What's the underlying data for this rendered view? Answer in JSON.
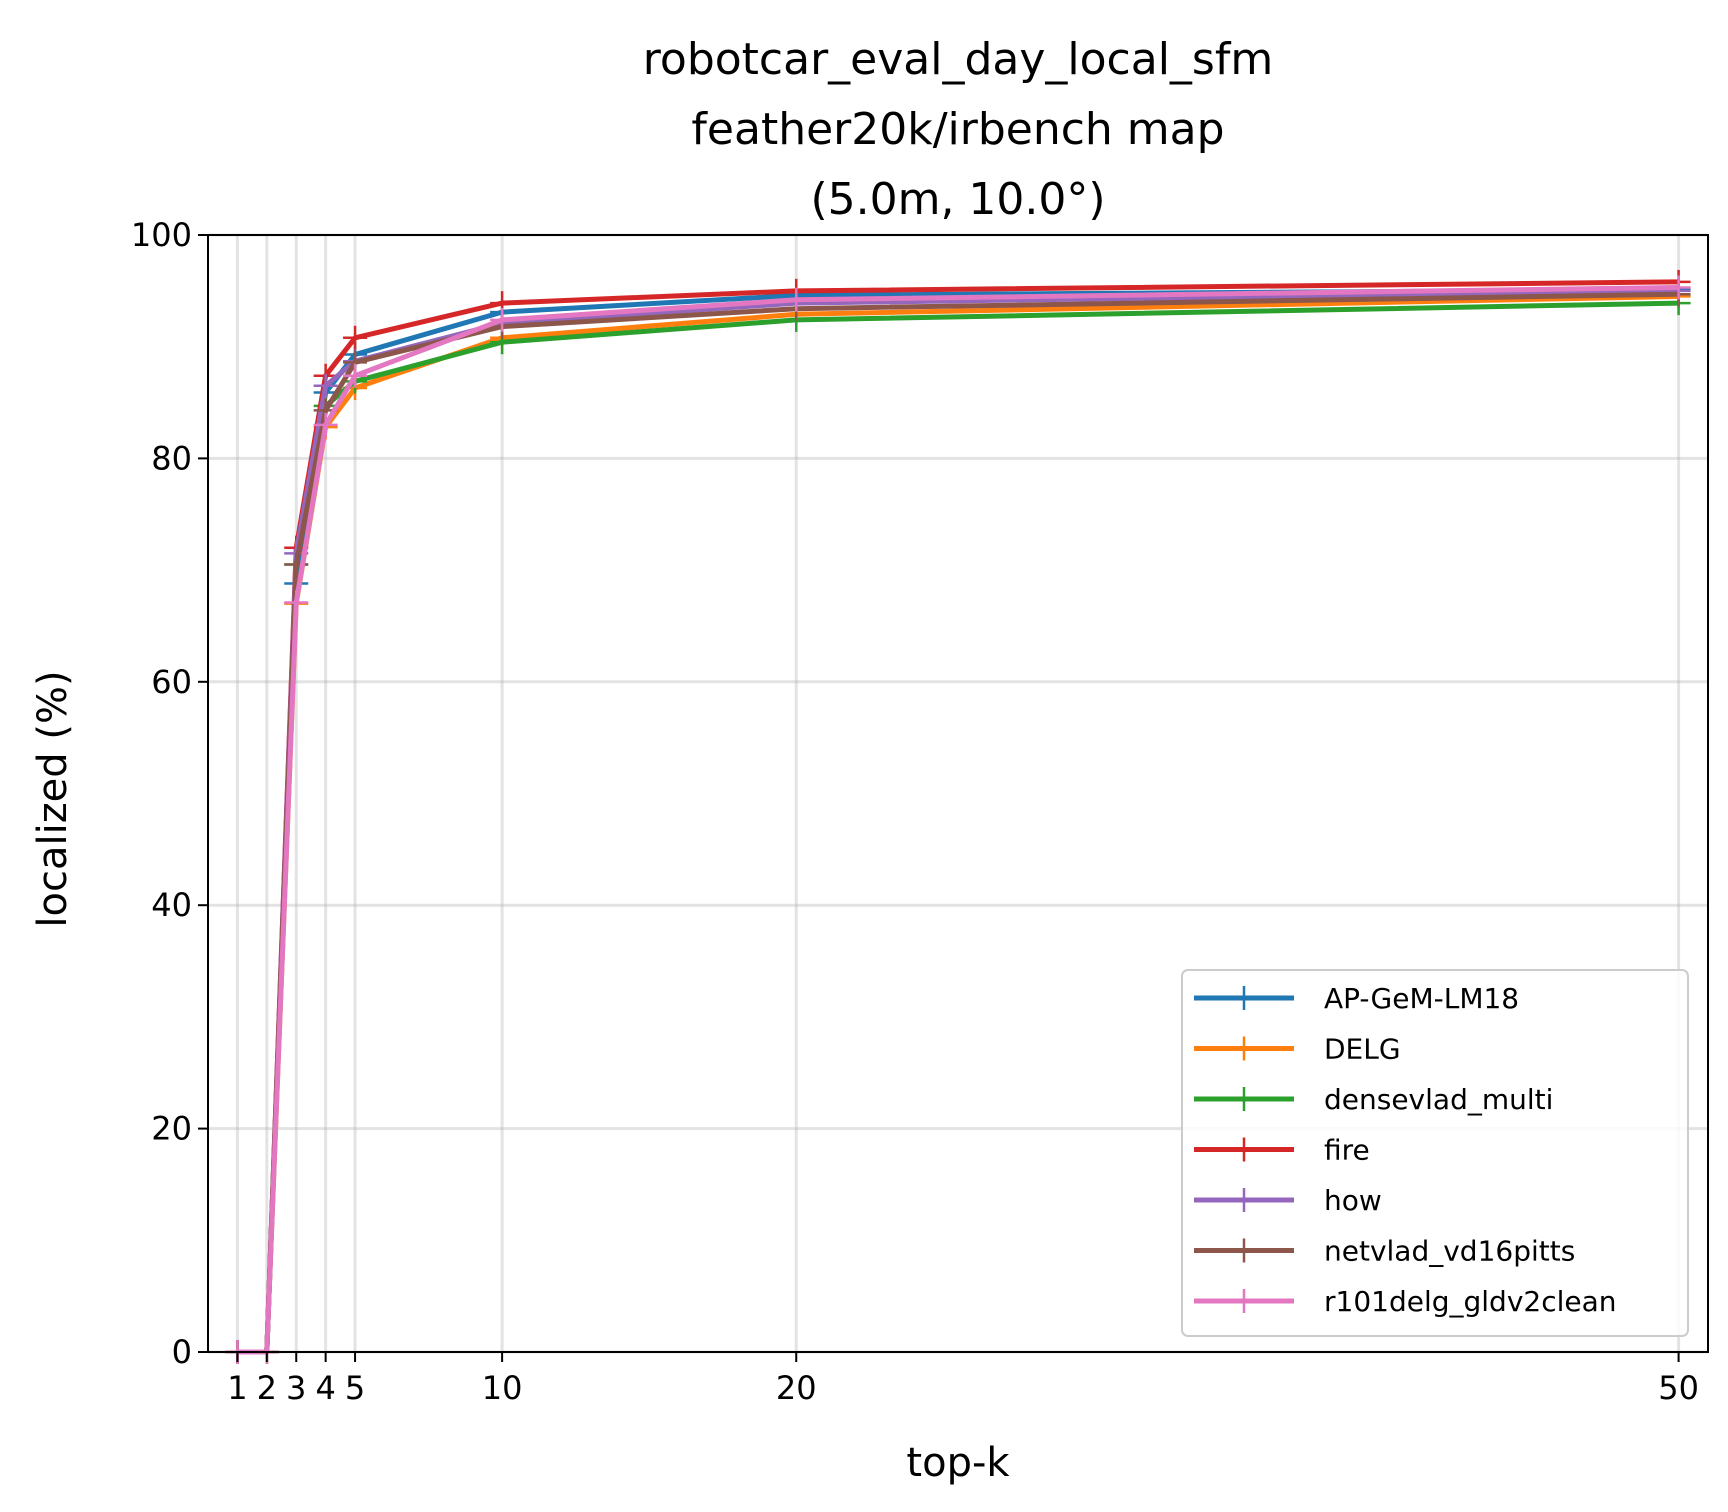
{
  "chart_data": {
    "type": "line",
    "title_lines": [
      "robotcar_eval_day_local_sfm",
      "feather20k/irbench map",
      "(5.0m, 10.0°)"
    ],
    "xlabel": "top-k",
    "ylabel": "localized (%)",
    "x": [
      1,
      2,
      3,
      4,
      5,
      10,
      20,
      50
    ],
    "x_tick_labels": [
      "1",
      "2",
      "3",
      "4",
      "5",
      "10",
      "20",
      "50"
    ],
    "y_ticks": [
      0,
      20,
      40,
      60,
      80,
      100
    ],
    "y_tick_labels": [
      "0",
      "20",
      "40",
      "60",
      "80",
      "100"
    ],
    "xlim": [
      0.0,
      51.0
    ],
    "ylim": [
      0,
      100
    ],
    "grid": true,
    "legend_position": "lower-right",
    "series": [
      {
        "name": "AP-GeM-LM18",
        "color": "#1f77b4",
        "values": [
          0,
          0,
          68.8,
          85.9,
          89.3,
          93.1,
          94.6,
          95.1
        ]
      },
      {
        "name": "DELG",
        "color": "#ff7f0e",
        "values": [
          0,
          0,
          67.0,
          82.8,
          86.3,
          90.8,
          92.9,
          94.5
        ]
      },
      {
        "name": "densevlad_multi",
        "color": "#2ca02c",
        "values": [
          0,
          0,
          70.5,
          84.7,
          86.9,
          90.4,
          92.4,
          93.9
        ]
      },
      {
        "name": "fire",
        "color": "#d62728",
        "values": [
          0,
          0,
          72.0,
          87.4,
          90.8,
          93.9,
          95.0,
          95.8
        ]
      },
      {
        "name": "how",
        "color": "#9467bd",
        "values": [
          0,
          0,
          71.5,
          86.5,
          88.7,
          92.1,
          93.9,
          95.0
        ]
      },
      {
        "name": "netvlad_vd16pitts",
        "color": "#8c564b",
        "values": [
          0,
          0,
          70.5,
          84.3,
          88.6,
          91.8,
          93.4,
          94.7
        ]
      },
      {
        "name": "r101delg_gldv2clean",
        "color": "#e377c2",
        "values": [
          0,
          0,
          67.1,
          83.0,
          87.4,
          92.4,
          94.2,
          95.3
        ]
      }
    ]
  }
}
